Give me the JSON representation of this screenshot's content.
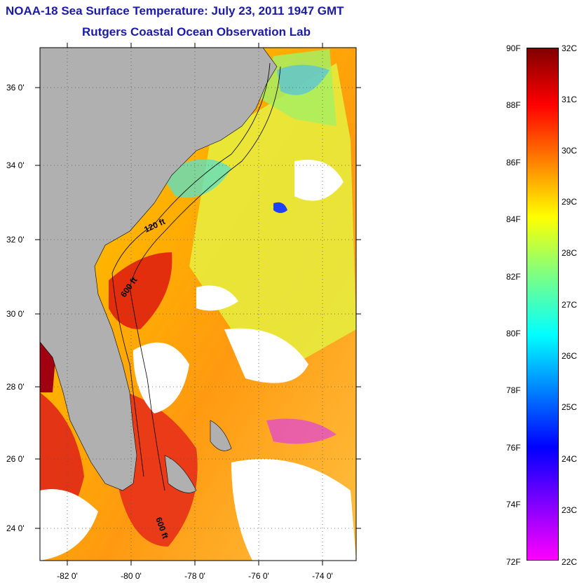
{
  "titles": {
    "line1": "NOAA-18 Sea Surface Temperature:  July 23, 2011 1947 GMT",
    "line2": "Rutgers Coastal Ocean Observation Lab"
  },
  "axes": {
    "lat_ticks": [
      "36 0'",
      "34 0'",
      "32 0'",
      "30 0'",
      "28 0'",
      "26 0'",
      "24 0'"
    ],
    "lon_ticks": [
      "-82 0'",
      "-80 0'",
      "-78 0'",
      "-76 0'",
      "-74 0'"
    ]
  },
  "contours": {
    "labels": [
      "120 ft",
      "600 ft",
      "600 ft"
    ]
  },
  "colorbar": {
    "fahrenheit": [
      "90F",
      "88F",
      "86F",
      "84F",
      "82F",
      "80F",
      "78F",
      "76F",
      "74F",
      "72F"
    ],
    "celsius": [
      "32C",
      "31C",
      "30C",
      "29C",
      "28C",
      "27C",
      "26C",
      "25C",
      "24C",
      "23C",
      "22C"
    ],
    "colors": [
      "#800000",
      "#ff0000",
      "#ff8000",
      "#ffff00",
      "#80ff80",
      "#00ffff",
      "#0080ff",
      "#0000ff",
      "#8000ff",
      "#ff00ff"
    ]
  },
  "colors": {
    "land": "#b0b0b0",
    "no_data": "#ffffff",
    "title": "#1a1aa8"
  }
}
